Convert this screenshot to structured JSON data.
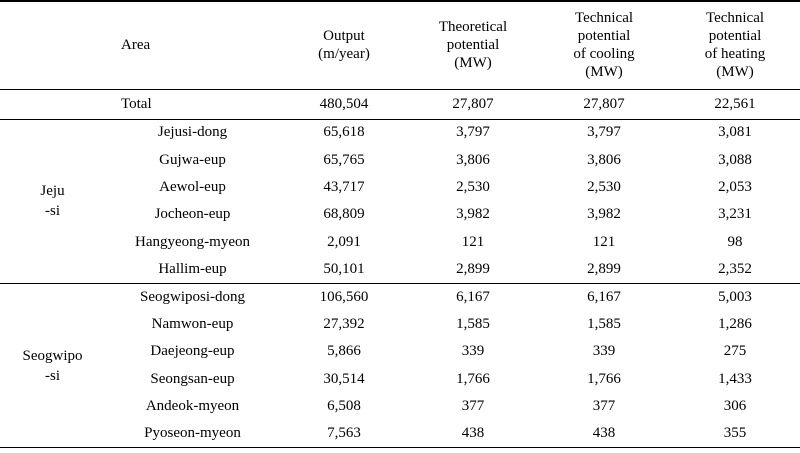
{
  "headers": {
    "area": "Area",
    "output": [
      "Output",
      "(m/year)"
    ],
    "theoretical": [
      "Theoretical",
      "potential",
      "(MW)"
    ],
    "cooling": [
      "Technical",
      "potential",
      "of cooling",
      "(MW)"
    ],
    "heating": [
      "Technical",
      "potential",
      "of heating",
      "(MW)"
    ]
  },
  "total": {
    "label": "Total",
    "output": "480,504",
    "theoretical": "27,807",
    "cooling": "27,807",
    "heating": "22,561"
  },
  "groups": [
    {
      "name": [
        "Jeju",
        "-si"
      ],
      "rows": [
        {
          "area": "Jejusi-dong",
          "output": "65,618",
          "theoretical": "3,797",
          "cooling": "3,797",
          "heating": "3,081"
        },
        {
          "area": "Gujwa-eup",
          "output": "65,765",
          "theoretical": "3,806",
          "cooling": "3,806",
          "heating": "3,088"
        },
        {
          "area": "Aewol-eup",
          "output": "43,717",
          "theoretical": "2,530",
          "cooling": "2,530",
          "heating": "2,053"
        },
        {
          "area": "Jocheon-eup",
          "output": "68,809",
          "theoretical": "3,982",
          "cooling": "3,982",
          "heating": "3,231"
        },
        {
          "area": "Hangyeong-myeon",
          "output": "2,091",
          "theoretical": "121",
          "cooling": "121",
          "heating": "98"
        },
        {
          "area": "Hallim-eup",
          "output": "50,101",
          "theoretical": "2,899",
          "cooling": "2,899",
          "heating": "2,352"
        }
      ]
    },
    {
      "name": [
        "Seogwipo",
        "-si"
      ],
      "rows": [
        {
          "area": "Seogwiposi-dong",
          "output": "106,560",
          "theoretical": "6,167",
          "cooling": "6,167",
          "heating": "5,003"
        },
        {
          "area": "Namwon-eup",
          "output": "27,392",
          "theoretical": "1,585",
          "cooling": "1,585",
          "heating": "1,286"
        },
        {
          "area": "Daejeong-eup",
          "output": "5,866",
          "theoretical": "339",
          "cooling": "339",
          "heating": "275"
        },
        {
          "area": "Seongsan-eup",
          "output": "30,514",
          "theoretical": "1,766",
          "cooling": "1,766",
          "heating": "1,433"
        },
        {
          "area": "Andeok-myeon",
          "output": "6,508",
          "theoretical": "377",
          "cooling": "377",
          "heating": "306"
        },
        {
          "area": "Pyoseon-myeon",
          "output": "7,563",
          "theoretical": "438",
          "cooling": "438",
          "heating": "355"
        }
      ]
    }
  ]
}
